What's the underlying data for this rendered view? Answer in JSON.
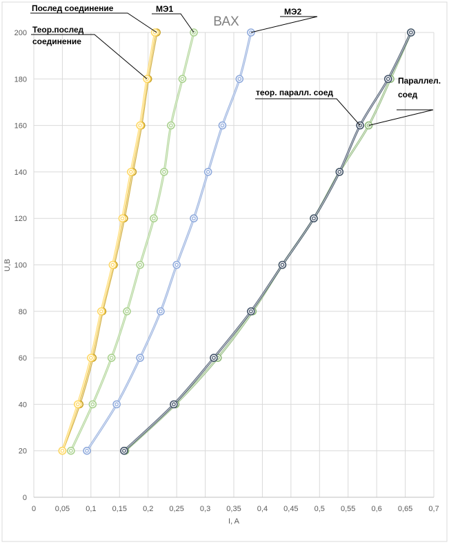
{
  "chart_data": {
    "type": "scatter",
    "title": "ВАХ",
    "xlabel": "I, A",
    "ylabel": "U,B",
    "xlim": [
      0,
      0.7
    ],
    "ylim": [
      0,
      200
    ],
    "x_ticks": [
      "0",
      "0,05",
      "0,1",
      "0,15",
      "0,2",
      "0,25",
      "0,3",
      "0,35",
      "0,4",
      "0,45",
      "0,5",
      "0,55",
      "0,6",
      "0,65",
      "0,7"
    ],
    "y_ticks": [
      "0",
      "20",
      "40",
      "60",
      "80",
      "100",
      "120",
      "140",
      "160",
      "180",
      "200"
    ],
    "grid": true,
    "legend": "none",
    "series": [
      {
        "name": "МЭ1",
        "color": "#a9d18e",
        "x": [
          0.065,
          0.103,
          0.136,
          0.163,
          0.186,
          0.21,
          0.228,
          0.24,
          0.26,
          0.28
        ],
        "y": [
          20,
          40,
          60,
          80,
          100,
          120,
          140,
          160,
          180,
          200
        ]
      },
      {
        "name": "МЭ2",
        "color": "#8faadc",
        "x": [
          0.093,
          0.145,
          0.186,
          0.222,
          0.25,
          0.28,
          0.305,
          0.33,
          0.36,
          0.38
        ],
        "y": [
          20,
          40,
          60,
          80,
          100,
          120,
          140,
          160,
          180,
          200
        ]
      },
      {
        "name": "Послед соединение",
        "color": "#c9a227",
        "x": [
          0.05,
          0.08,
          0.103,
          0.12,
          0.14,
          0.158,
          0.173,
          0.188,
          0.2,
          0.215
        ],
        "y": [
          20,
          40,
          60,
          80,
          100,
          120,
          140,
          160,
          180,
          200
        ]
      },
      {
        "name": "Теор.послед соединение",
        "color": "#ffd966",
        "x": [
          0.05,
          0.077,
          0.1,
          0.118,
          0.138,
          0.155,
          0.17,
          0.186,
          0.198,
          0.212
        ],
        "y": [
          20,
          40,
          60,
          80,
          100,
          120,
          140,
          160,
          180,
          200
        ]
      },
      {
        "name": "Параллел. соед",
        "color": "#8fb97a",
        "x": [
          0.16,
          0.248,
          0.322,
          0.383,
          0.435,
          0.49,
          0.535,
          0.586,
          0.624,
          0.66
        ],
        "y": [
          20,
          40,
          60,
          80,
          100,
          120,
          140,
          160,
          180,
          200
        ]
      },
      {
        "name": "теор. паралл. соед",
        "color": "#44546a",
        "x": [
          0.158,
          0.245,
          0.315,
          0.38,
          0.435,
          0.49,
          0.535,
          0.571,
          0.62,
          0.66
        ],
        "y": [
          20,
          40,
          60,
          80,
          100,
          120,
          140,
          160,
          180,
          200
        ]
      }
    ],
    "annotations": [
      {
        "text": "Послед соединение",
        "series": 2,
        "point": 9
      },
      {
        "text": "МЭ1",
        "series": 0,
        "point": 9
      },
      {
        "text": "МЭ2",
        "series": 1,
        "point": 9
      },
      {
        "text": "Теор.послед",
        "text2": "соединение",
        "series": 3,
        "point": 8
      },
      {
        "text": "теор. паралл. соед",
        "series": 5,
        "point": 7
      },
      {
        "text": "Параллел.",
        "text2": "соед",
        "series": 4,
        "point": 7
      }
    ]
  }
}
